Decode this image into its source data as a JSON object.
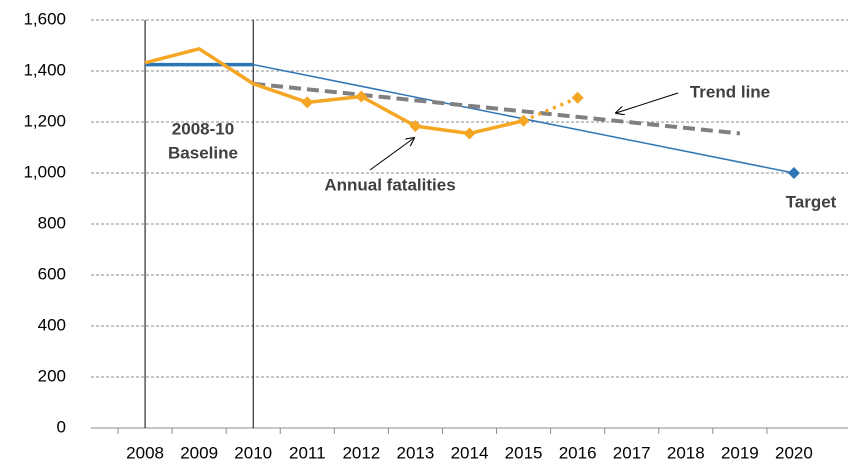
{
  "chart_data": {
    "type": "line",
    "xlim": [
      2007,
      2021
    ],
    "xticks": [
      2008,
      2009,
      2010,
      2011,
      2012,
      2013,
      2014,
      2015,
      2016,
      2017,
      2018,
      2019,
      2020
    ],
    "ylim": [
      0,
      1600
    ],
    "yticks": [
      0,
      200,
      400,
      600,
      {
        "value": 800,
        "label": "800"
      },
      {
        "value": 1000,
        "label": "1,000"
      },
      {
        "value": 1200,
        "label": "1,200"
      },
      {
        "value": 1400,
        "label": "1,400"
      },
      {
        "value": 1600,
        "label": "1,600"
      }
    ],
    "grid": true,
    "series": [
      {
        "color": "#2e75b6",
        "x": [
          2008,
          2010
        ],
        "values": [
          1425,
          1425
        ],
        "style": "thick",
        "bounds": true
      },
      {
        "color": "#2e75b6",
        "x": [
          2010,
          2020
        ],
        "values": [
          1425,
          1000
        ],
        "style": "thin",
        "markers": [
          false,
          true
        ]
      },
      {
        "color": "#808080",
        "x": [
          2010,
          2019
        ],
        "values": [
          1350,
          1155
        ],
        "style": "dashed"
      },
      {
        "color": "#f5a623",
        "x": [
          2008,
          2009,
          2010,
          2011,
          2012,
          2013,
          2014,
          2015
        ],
        "values": [
          1432,
          1487,
          1350,
          1277,
          1300,
          1184,
          1155,
          1205
        ],
        "style": "solid",
        "markers": [
          false,
          false,
          false,
          true,
          true,
          true,
          true,
          true
        ]
      },
      {
        "color": "#f5a623",
        "x": [
          2015,
          2016
        ],
        "values": [
          1205,
          1295
        ],
        "style": "dotted",
        "markers": [
          false,
          true
        ]
      }
    ],
    "annotations": [
      [
        "2008-10",
        "Baseline"
      ],
      [
        "Annual fatalities"
      ],
      [
        "Trend line"
      ],
      [
        "Target"
      ]
    ]
  }
}
